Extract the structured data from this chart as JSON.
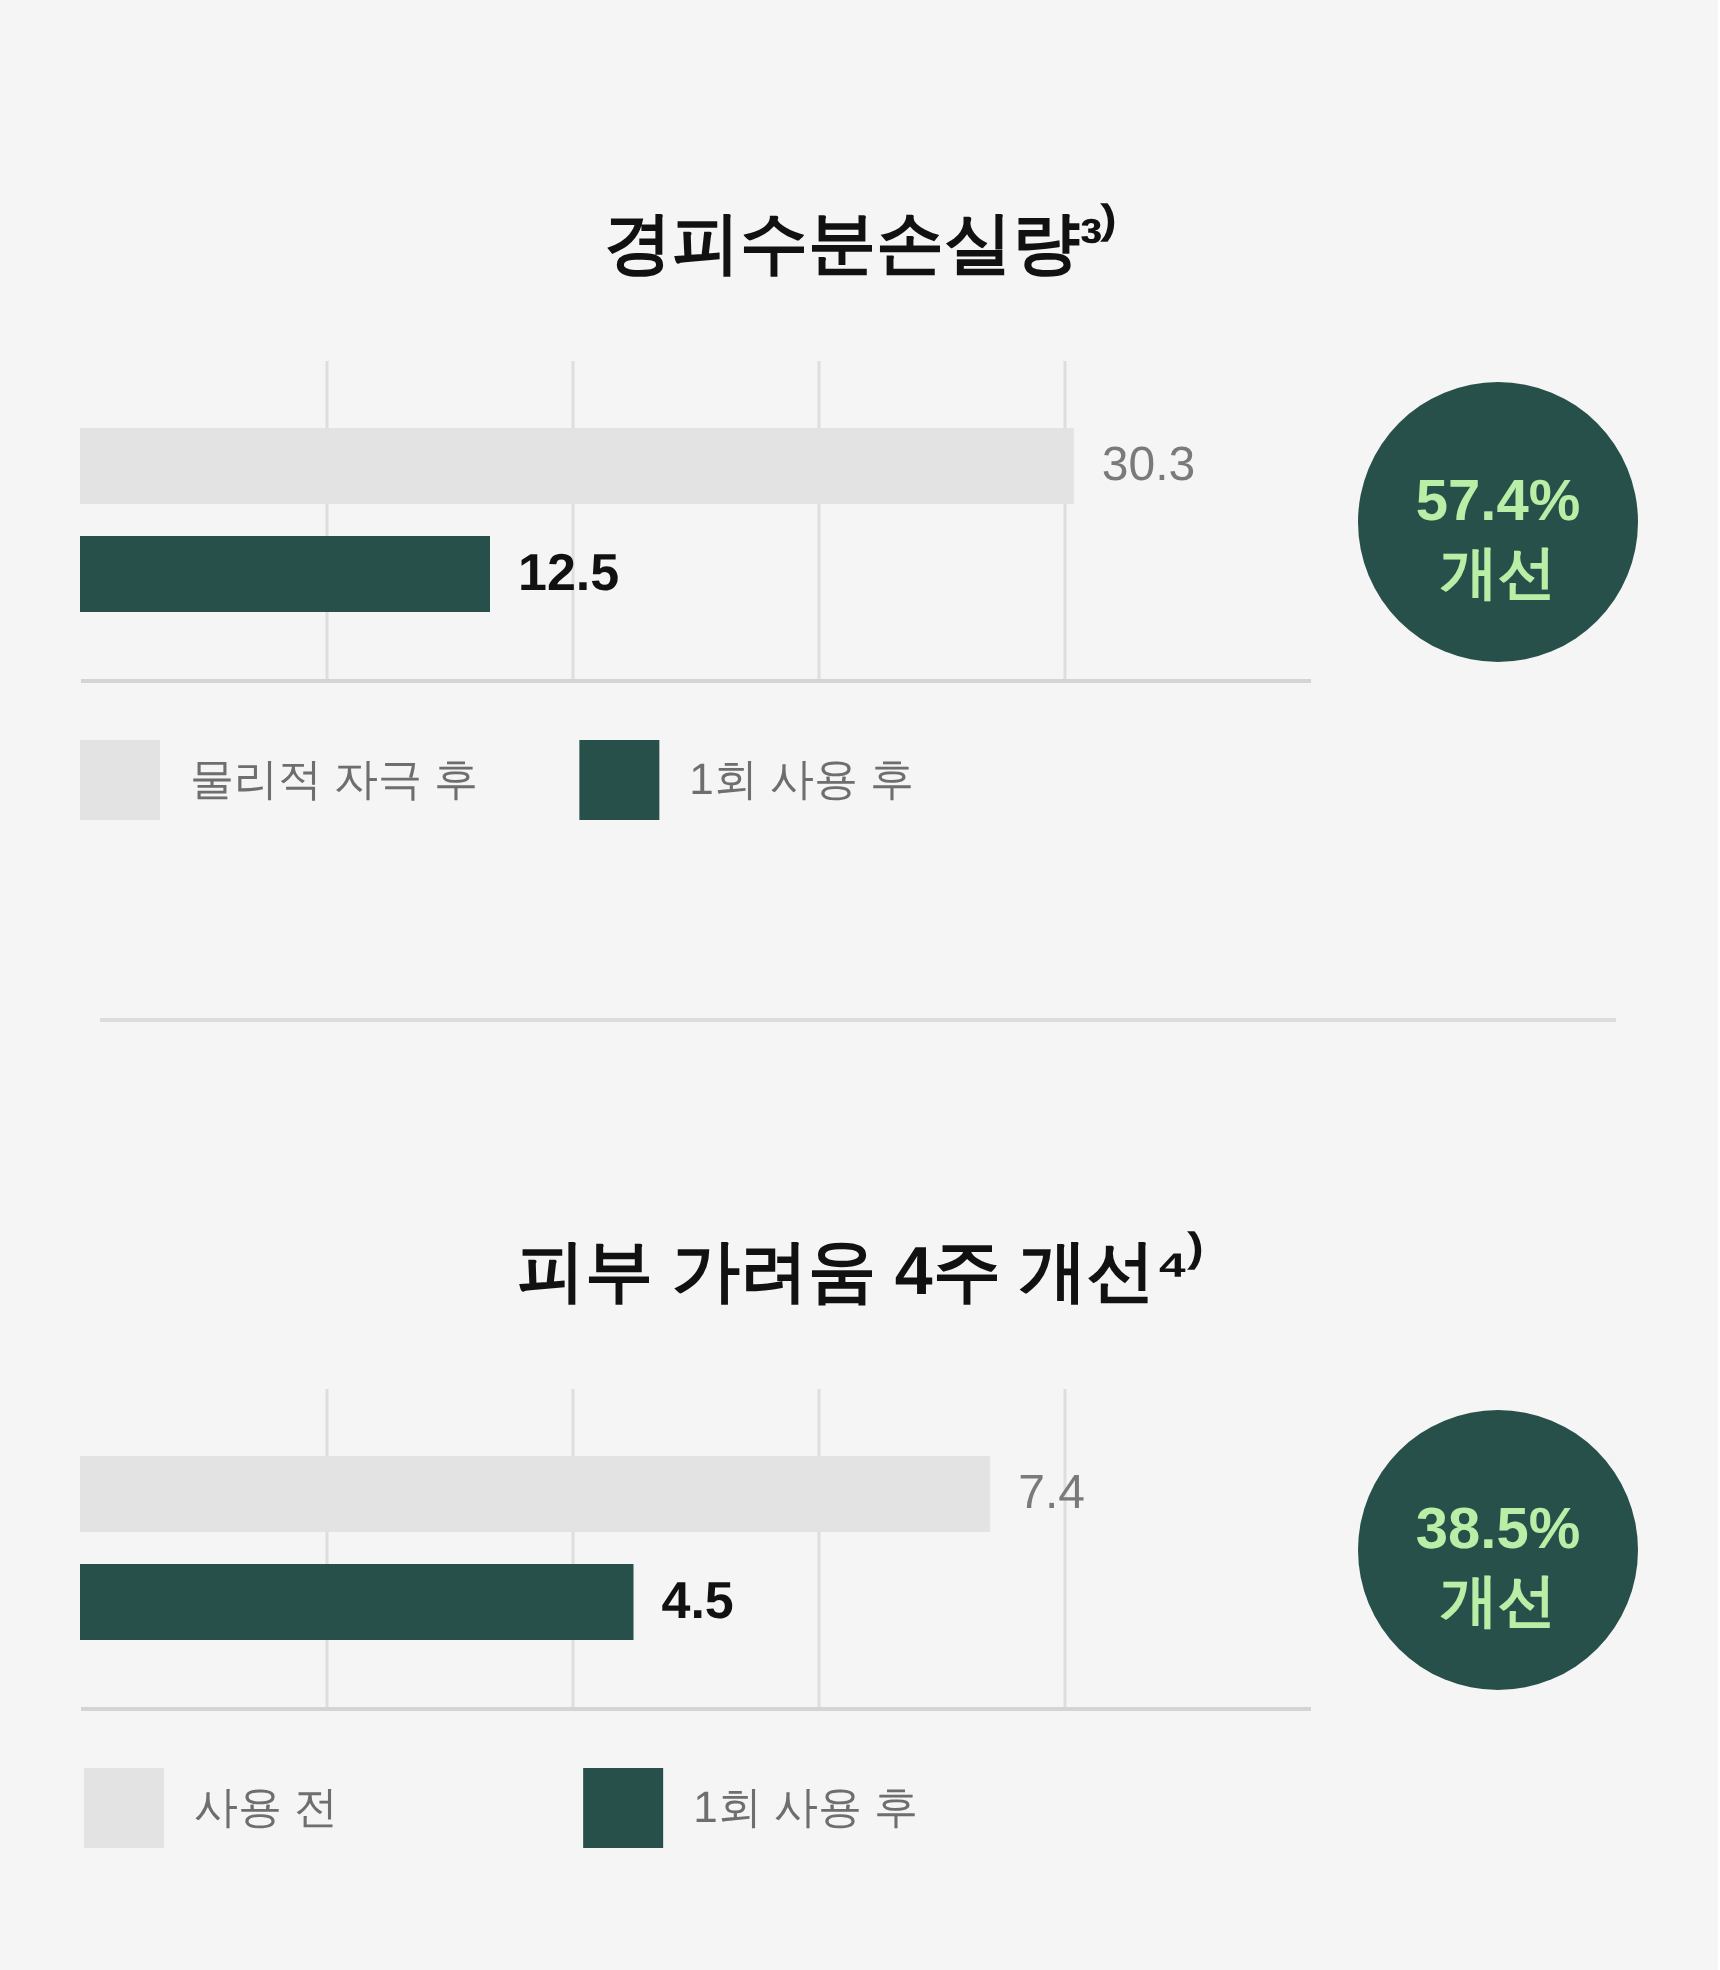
{
  "chart_data": [
    {
      "type": "bar",
      "orientation": "horizontal",
      "title": "경피수분손실량³⁾",
      "categories": [
        null
      ],
      "series": [
        {
          "name": "물리적 자극 후",
          "color": "#e3e3e3",
          "values": [
            30.3
          ]
        },
        {
          "name": "1회 사용 후",
          "color": "#27504a",
          "values": [
            12.5
          ]
        }
      ],
      "xlim": [
        0,
        37.5
      ],
      "xticks": [
        {
          "value": 7.5,
          "label": null
        },
        {
          "value": 15,
          "label": null
        },
        {
          "value": 22.5,
          "label": null
        },
        {
          "value": 30,
          "label": null
        }
      ],
      "grid": "x",
      "tick_labels": false,
      "data_labels": true,
      "legend": "bottom",
      "annotations": [
        "57.4%\n개선"
      ]
    },
    {
      "type": "bar",
      "orientation": "horizontal",
      "title": "피부 가려움 4주 개선⁴⁾",
      "categories": [
        null
      ],
      "series": [
        {
          "name": "사용 전",
          "color": "#e3e3e3",
          "values": [
            7.4
          ]
        },
        {
          "name": "1회 사용 후",
          "color": "#27504a",
          "values": [
            4.5
          ]
        }
      ],
      "xlim": [
        0,
        10
      ],
      "xticks": [
        {
          "value": 2,
          "label": null
        },
        {
          "value": 4,
          "label": null
        },
        {
          "value": 6,
          "label": null
        },
        {
          "value": 8,
          "label": null
        }
      ],
      "grid": "x",
      "tick_labels": false,
      "data_labels": true,
      "legend": "bottom",
      "annotations": [
        "38.5%\n개선"
      ]
    }
  ]
}
